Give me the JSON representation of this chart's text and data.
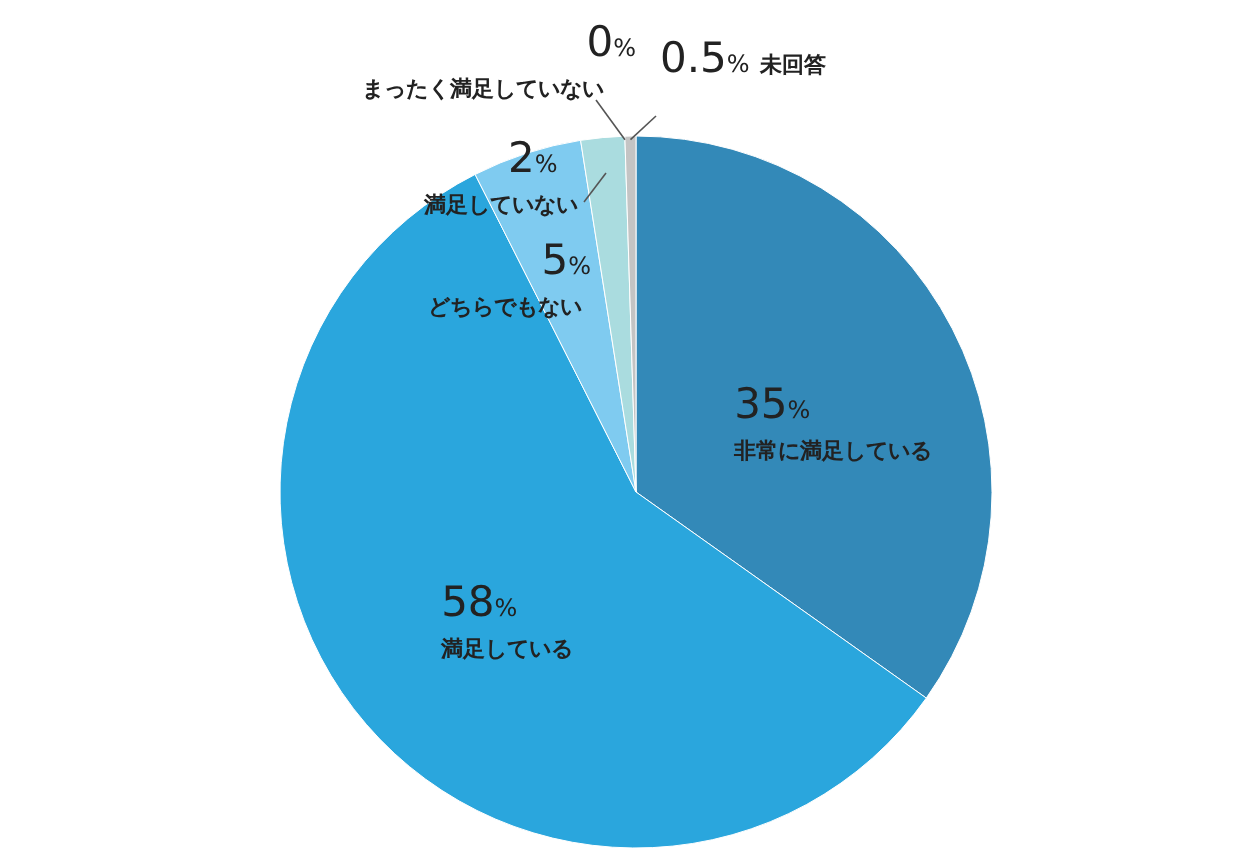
{
  "chart_data": {
    "type": "pie",
    "categories": [
      "非常に満足している",
      "満足している",
      "どちらでもない",
      "満足していない",
      "まったく満足していない",
      "未回答"
    ],
    "values": [
      35,
      58,
      5,
      2,
      0,
      0.5
    ],
    "value_labels": [
      "35%",
      "58%",
      "5%",
      "2%",
      "0%",
      "0.5%"
    ],
    "colors": [
      "#3389b8",
      "#2aa6dd",
      "#7fcbf0",
      "#aadcdf",
      null,
      "#c4c4c4"
    ]
  }
}
